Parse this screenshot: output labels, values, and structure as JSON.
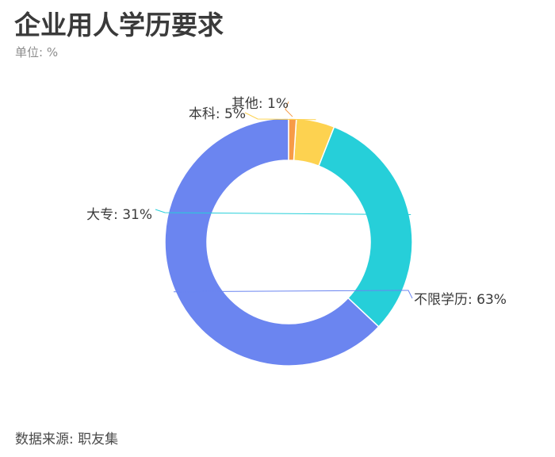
{
  "chart_data": {
    "type": "pie",
    "title": "企业用人学历要求",
    "subtitle": "单位: %",
    "source": "数据来源: 职友集",
    "slices": [
      {
        "name": "不限学历",
        "value": 63,
        "color": "#6b85f0",
        "label": "不限学历: 63%"
      },
      {
        "name": "大专",
        "value": 31,
        "color": "#26cfd9",
        "label": "大专: 31%"
      },
      {
        "name": "本科",
        "value": 5,
        "color": "#fdd250",
        "label": "本科: 5%"
      },
      {
        "name": "其他",
        "value": 1,
        "color": "#f79b47",
        "label": "其他: 1%"
      }
    ],
    "donut": true,
    "start": "top",
    "direction": "counterclockwise"
  }
}
